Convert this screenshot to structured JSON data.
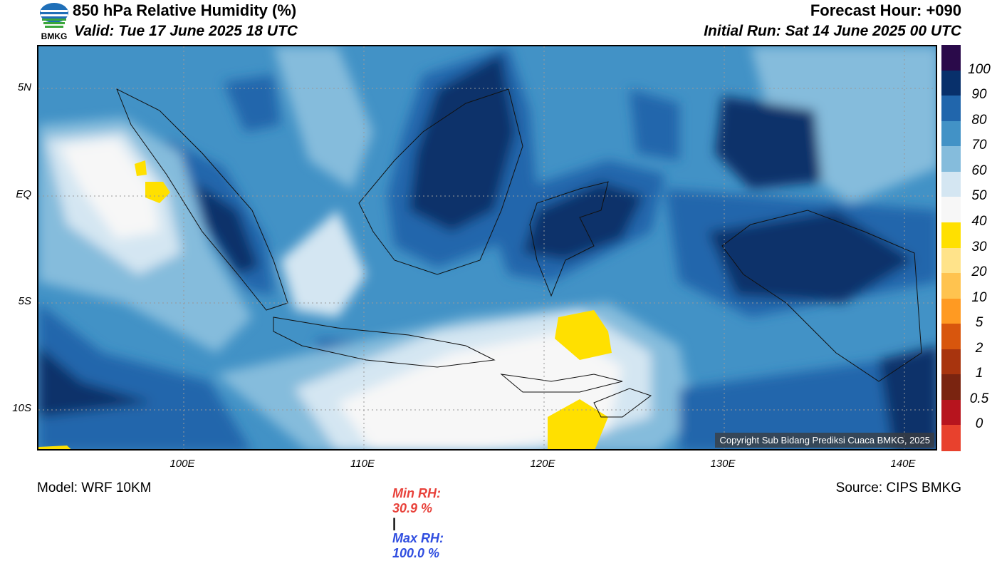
{
  "header": {
    "title": "850 hPa Relative Humidity (%)",
    "valid": "Valid: Tue 17 June 2025 18 UTC",
    "forecast_hour": "Forecast Hour: +090",
    "initial_run": "Initial Run: Sat 14 June 2025 00 UTC",
    "logo_text": "BMKG"
  },
  "map": {
    "lat_labels": [
      "5N",
      "EQ",
      "5S",
      "10S"
    ],
    "lon_labels": [
      "100E",
      "110E",
      "120E",
      "130E",
      "140E"
    ],
    "copyright": "Copyright Sub Bidang Prediksi Cuaca BMKG, 2025"
  },
  "colorbar": {
    "labels": [
      "100",
      "90",
      "80",
      "70",
      "60",
      "50",
      "40",
      "30",
      "20",
      "10",
      "5",
      "2",
      "1",
      "0.5",
      "0"
    ],
    "colors": [
      "#2a0a4a",
      "#08306b",
      "#2166ac",
      "#4292c6",
      "#85bcdc",
      "#d4e6f2",
      "#f7f7f7",
      "#ffe000",
      "#ffe38a",
      "#ffc34f",
      "#ff9a22",
      "#d8560d",
      "#a8340e",
      "#7a2410",
      "#b7141e",
      "#e8412d"
    ]
  },
  "footer": {
    "model": "Model: WRF 10KM",
    "min_rh_label": "Min RH:",
    "min_rh_value": "30.9 %",
    "separator": "|",
    "max_rh_label": "Max RH:",
    "max_rh_value": "100.0 %",
    "source": "Source: CIPS BMKG"
  }
}
